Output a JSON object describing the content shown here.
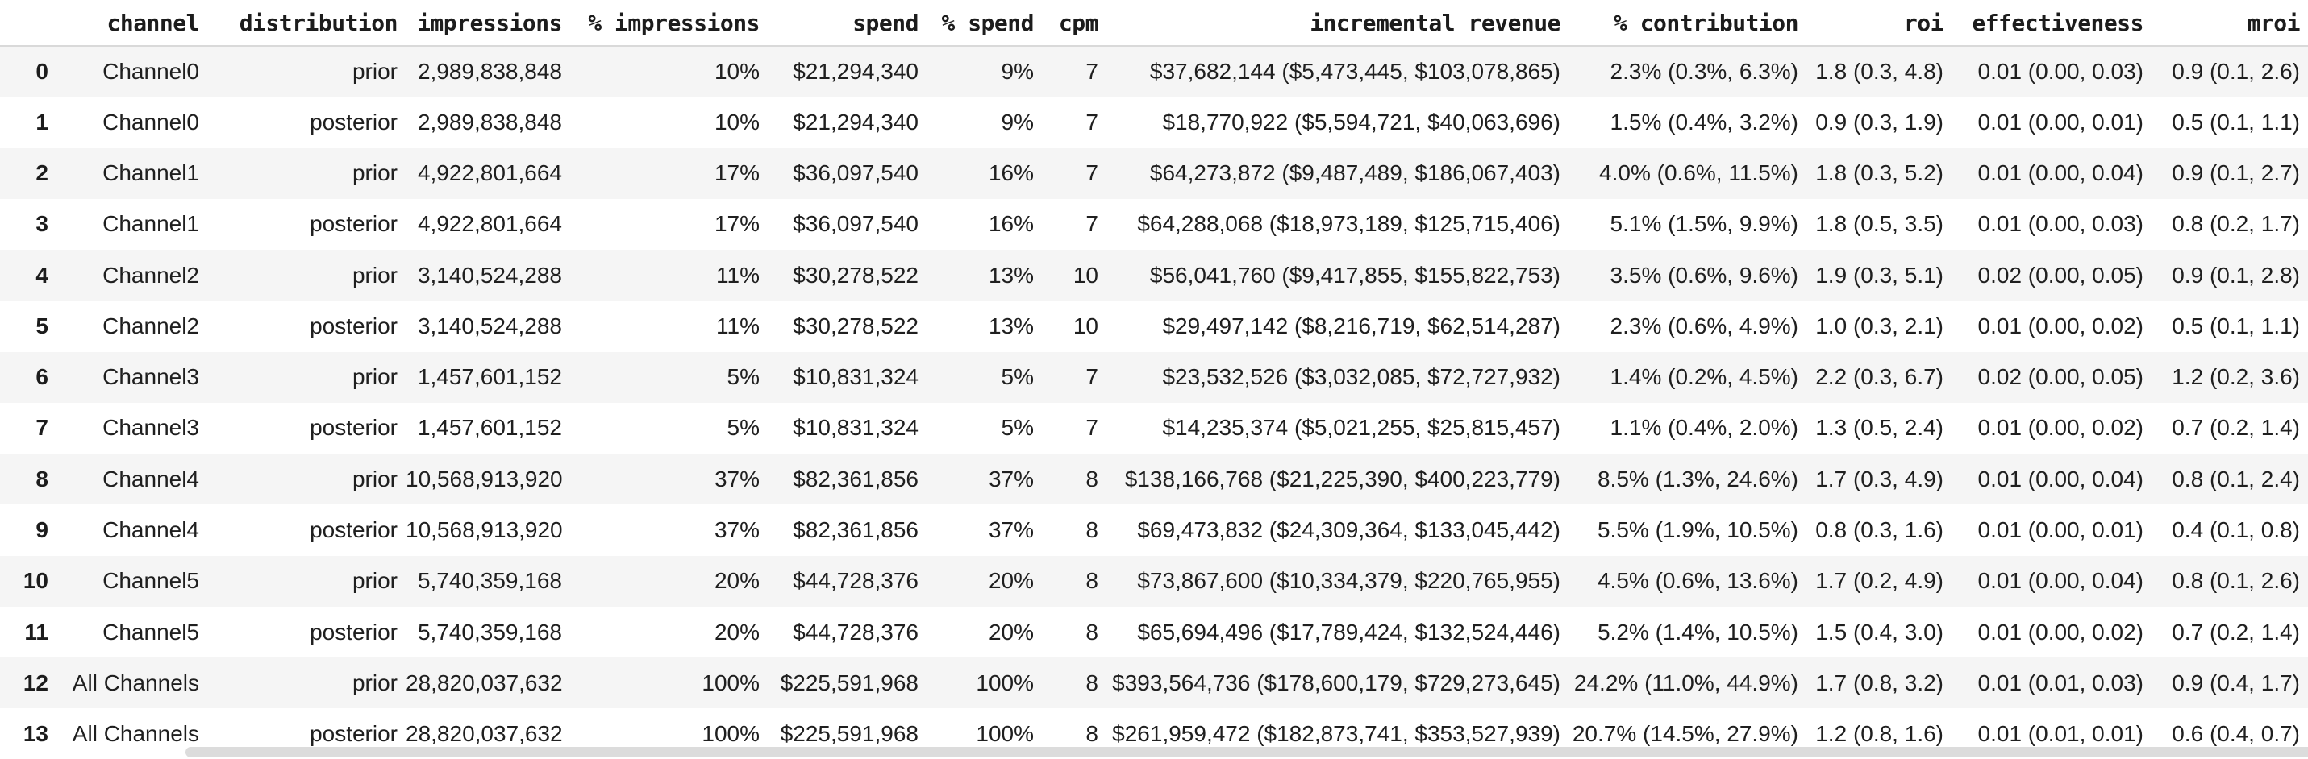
{
  "table": {
    "columns": [
      {
        "key": "index",
        "label": ""
      },
      {
        "key": "channel",
        "label": "channel"
      },
      {
        "key": "distribution",
        "label": "distribution"
      },
      {
        "key": "impressions",
        "label": "impressions"
      },
      {
        "key": "impressions_pct",
        "label": "% impressions"
      },
      {
        "key": "spend",
        "label": "spend"
      },
      {
        "key": "spend_pct",
        "label": "% spend"
      },
      {
        "key": "cpm",
        "label": "cpm"
      },
      {
        "key": "incremental_revenue",
        "label": "incremental revenue"
      },
      {
        "key": "contribution_pct",
        "label": "% contribution"
      },
      {
        "key": "roi",
        "label": "roi"
      },
      {
        "key": "effectiveness",
        "label": "effectiveness"
      },
      {
        "key": "mroi",
        "label": "mroi"
      }
    ],
    "rows": [
      {
        "index": "0",
        "channel": "Channel0",
        "distribution": "prior",
        "impressions": "2,989,838,848",
        "impressions_pct": "10%",
        "spend": "$21,294,340",
        "spend_pct": "9%",
        "cpm": "7",
        "incremental_revenue": "$37,682,144 ($5,473,445, $103,078,865)",
        "contribution_pct": "2.3% (0.3%, 6.3%)",
        "roi": "1.8 (0.3, 4.8)",
        "effectiveness": "0.01 (0.00, 0.03)",
        "mroi": "0.9 (0.1, 2.6)"
      },
      {
        "index": "1",
        "channel": "Channel0",
        "distribution": "posterior",
        "impressions": "2,989,838,848",
        "impressions_pct": "10%",
        "spend": "$21,294,340",
        "spend_pct": "9%",
        "cpm": "7",
        "incremental_revenue": "$18,770,922 ($5,594,721, $40,063,696)",
        "contribution_pct": "1.5% (0.4%, 3.2%)",
        "roi": "0.9 (0.3, 1.9)",
        "effectiveness": "0.01 (0.00, 0.01)",
        "mroi": "0.5 (0.1, 1.1)"
      },
      {
        "index": "2",
        "channel": "Channel1",
        "distribution": "prior",
        "impressions": "4,922,801,664",
        "impressions_pct": "17%",
        "spend": "$36,097,540",
        "spend_pct": "16%",
        "cpm": "7",
        "incremental_revenue": "$64,273,872 ($9,487,489, $186,067,403)",
        "contribution_pct": "4.0% (0.6%, 11.5%)",
        "roi": "1.8 (0.3, 5.2)",
        "effectiveness": "0.01 (0.00, 0.04)",
        "mroi": "0.9 (0.1, 2.7)"
      },
      {
        "index": "3",
        "channel": "Channel1",
        "distribution": "posterior",
        "impressions": "4,922,801,664",
        "impressions_pct": "17%",
        "spend": "$36,097,540",
        "spend_pct": "16%",
        "cpm": "7",
        "incremental_revenue": "$64,288,068 ($18,973,189, $125,715,406)",
        "contribution_pct": "5.1% (1.5%, 9.9%)",
        "roi": "1.8 (0.5, 3.5)",
        "effectiveness": "0.01 (0.00, 0.03)",
        "mroi": "0.8 (0.2, 1.7)"
      },
      {
        "index": "4",
        "channel": "Channel2",
        "distribution": "prior",
        "impressions": "3,140,524,288",
        "impressions_pct": "11%",
        "spend": "$30,278,522",
        "spend_pct": "13%",
        "cpm": "10",
        "incremental_revenue": "$56,041,760 ($9,417,855, $155,822,753)",
        "contribution_pct": "3.5% (0.6%, 9.6%)",
        "roi": "1.9 (0.3, 5.1)",
        "effectiveness": "0.02 (0.00, 0.05)",
        "mroi": "0.9 (0.1, 2.8)"
      },
      {
        "index": "5",
        "channel": "Channel2",
        "distribution": "posterior",
        "impressions": "3,140,524,288",
        "impressions_pct": "11%",
        "spend": "$30,278,522",
        "spend_pct": "13%",
        "cpm": "10",
        "incremental_revenue": "$29,497,142 ($8,216,719, $62,514,287)",
        "contribution_pct": "2.3% (0.6%, 4.9%)",
        "roi": "1.0 (0.3, 2.1)",
        "effectiveness": "0.01 (0.00, 0.02)",
        "mroi": "0.5 (0.1, 1.1)"
      },
      {
        "index": "6",
        "channel": "Channel3",
        "distribution": "prior",
        "impressions": "1,457,601,152",
        "impressions_pct": "5%",
        "spend": "$10,831,324",
        "spend_pct": "5%",
        "cpm": "7",
        "incremental_revenue": "$23,532,526 ($3,032,085, $72,727,932)",
        "contribution_pct": "1.4% (0.2%, 4.5%)",
        "roi": "2.2 (0.3, 6.7)",
        "effectiveness": "0.02 (0.00, 0.05)",
        "mroi": "1.2 (0.2, 3.6)"
      },
      {
        "index": "7",
        "channel": "Channel3",
        "distribution": "posterior",
        "impressions": "1,457,601,152",
        "impressions_pct": "5%",
        "spend": "$10,831,324",
        "spend_pct": "5%",
        "cpm": "7",
        "incremental_revenue": "$14,235,374 ($5,021,255, $25,815,457)",
        "contribution_pct": "1.1% (0.4%, 2.0%)",
        "roi": "1.3 (0.5, 2.4)",
        "effectiveness": "0.01 (0.00, 0.02)",
        "mroi": "0.7 (0.2, 1.4)"
      },
      {
        "index": "8",
        "channel": "Channel4",
        "distribution": "prior",
        "impressions": "10,568,913,920",
        "impressions_pct": "37%",
        "spend": "$82,361,856",
        "spend_pct": "37%",
        "cpm": "8",
        "incremental_revenue": "$138,166,768 ($21,225,390, $400,223,779)",
        "contribution_pct": "8.5% (1.3%, 24.6%)",
        "roi": "1.7 (0.3, 4.9)",
        "effectiveness": "0.01 (0.00, 0.04)",
        "mroi": "0.8 (0.1, 2.4)"
      },
      {
        "index": "9",
        "channel": "Channel4",
        "distribution": "posterior",
        "impressions": "10,568,913,920",
        "impressions_pct": "37%",
        "spend": "$82,361,856",
        "spend_pct": "37%",
        "cpm": "8",
        "incremental_revenue": "$69,473,832 ($24,309,364, $133,045,442)",
        "contribution_pct": "5.5% (1.9%, 10.5%)",
        "roi": "0.8 (0.3, 1.6)",
        "effectiveness": "0.01 (0.00, 0.01)",
        "mroi": "0.4 (0.1, 0.8)"
      },
      {
        "index": "10",
        "channel": "Channel5",
        "distribution": "prior",
        "impressions": "5,740,359,168",
        "impressions_pct": "20%",
        "spend": "$44,728,376",
        "spend_pct": "20%",
        "cpm": "8",
        "incremental_revenue": "$73,867,600 ($10,334,379, $220,765,955)",
        "contribution_pct": "4.5% (0.6%, 13.6%)",
        "roi": "1.7 (0.2, 4.9)",
        "effectiveness": "0.01 (0.00, 0.04)",
        "mroi": "0.8 (0.1, 2.6)"
      },
      {
        "index": "11",
        "channel": "Channel5",
        "distribution": "posterior",
        "impressions": "5,740,359,168",
        "impressions_pct": "20%",
        "spend": "$44,728,376",
        "spend_pct": "20%",
        "cpm": "8",
        "incremental_revenue": "$65,694,496 ($17,789,424, $132,524,446)",
        "contribution_pct": "5.2% (1.4%, 10.5%)",
        "roi": "1.5 (0.4, 3.0)",
        "effectiveness": "0.01 (0.00, 0.02)",
        "mroi": "0.7 (0.2, 1.4)"
      },
      {
        "index": "12",
        "channel": "All Channels",
        "distribution": "prior",
        "impressions": "28,820,037,632",
        "impressions_pct": "100%",
        "spend": "$225,591,968",
        "spend_pct": "100%",
        "cpm": "8",
        "incremental_revenue": "$393,564,736 ($178,600,179, $729,273,645)",
        "contribution_pct": "24.2% (11.0%, 44.9%)",
        "roi": "1.7 (0.8, 3.2)",
        "effectiveness": "0.01 (0.01, 0.03)",
        "mroi": "0.9 (0.4, 1.7)"
      },
      {
        "index": "13",
        "channel": "All Channels",
        "distribution": "posterior",
        "impressions": "28,820,037,632",
        "impressions_pct": "100%",
        "spend": "$225,591,968",
        "spend_pct": "100%",
        "cpm": "8",
        "incremental_revenue": "$261,959,472 ($182,873,741, $353,527,939)",
        "contribution_pct": "20.7% (14.5%, 27.9%)",
        "roi": "1.2 (0.8, 1.6)",
        "effectiveness": "0.01 (0.01, 0.01)",
        "mroi": "0.6 (0.4, 0.7)"
      }
    ]
  },
  "colors": {
    "row_stripe": "#f5f5f5",
    "header_border": "#d9d9d9",
    "text": "#1f1f1f",
    "scrollbar_thumb": "#dcdcdc"
  }
}
